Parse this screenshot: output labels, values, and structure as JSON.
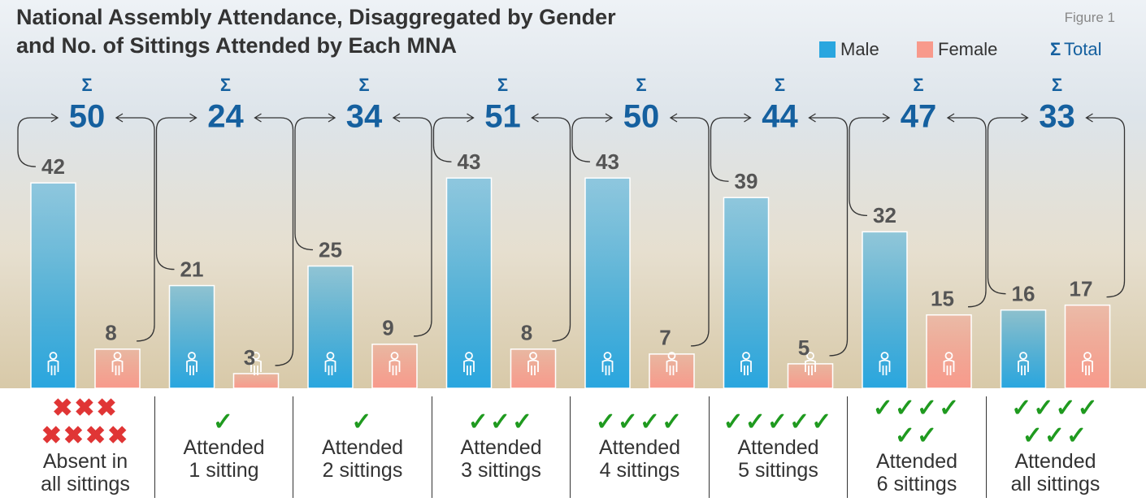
{
  "chart_data": {
    "type": "bar",
    "title": "National Assembly Attendance, Disaggregated by Gender\nand No. of Sittings Attended by Each MNA",
    "figure_label": "Figure 1",
    "categories": [
      "Absent in\nall sittings",
      "Attended\n1 sitting",
      "Attended\n2 sittings",
      "Attended\n3 sittings",
      "Attended\n4 sittings",
      "Attended\n5 sittings",
      "Attended\n6 sittings",
      "Attended\nall sittings"
    ],
    "category_icons": [
      "✖✖✖\n✖✖✖✖",
      "✓",
      "✓",
      "✓✓✓",
      "✓✓✓✓",
      "✓✓✓✓✓",
      "✓✓✓✓\n✓✓",
      "✓✓✓✓\n✓✓✓"
    ],
    "series": [
      {
        "name": "Male",
        "color": "#29a6df",
        "values": [
          42,
          21,
          25,
          43,
          43,
          39,
          32,
          16
        ]
      },
      {
        "name": "Female",
        "color": "#f89a8c",
        "values": [
          8,
          3,
          9,
          8,
          7,
          5,
          15,
          17
        ]
      }
    ],
    "total_symbol": "Σ",
    "total_name": "Total",
    "total_color": "#15609f",
    "totals": [
      50,
      24,
      34,
      51,
      50,
      44,
      47,
      33
    ],
    "ylim": [
      0,
      50
    ]
  }
}
